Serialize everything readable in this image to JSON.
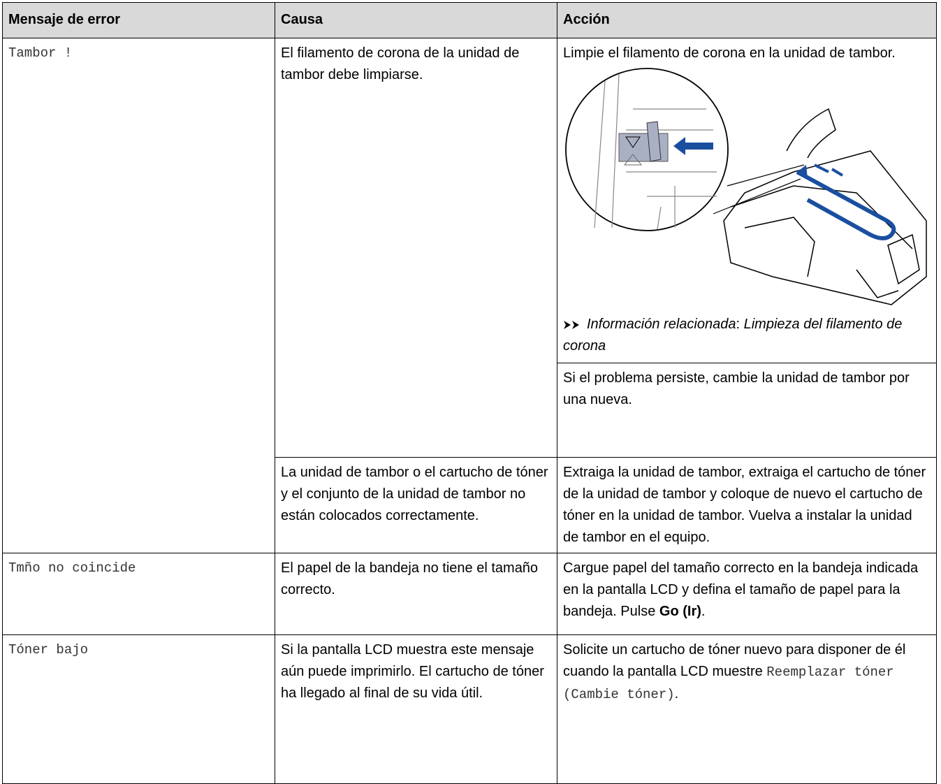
{
  "table": {
    "headers": [
      "Mensaje de error",
      "Causa",
      "Acción"
    ],
    "rows": [
      {
        "error": "Tambor !",
        "causes": [
          {
            "cause": "El filamento de corona de la unidad de tambor debe limpiarse.",
            "action": "Limpie el filamento de corona en la unidad de tambor.",
            "related_label": "Información relacionada",
            "related_separator": ":",
            "related_link": "Limpieza del filamento de corona",
            "action_extra": "Si el problema persiste, cambie la unidad de tambor por una nueva."
          },
          {
            "cause": "La unidad de tambor o el cartucho de tóner y el conjunto de la unidad de tambor no están colocados correctamente.",
            "action": "Extraiga la unidad de tambor, extraiga el cartucho de tóner de la unidad de tambor y coloque de nuevo el cartucho de tóner en la unidad de tambor. Vuelva a instalar la unidad de tambor en el equipo."
          }
        ]
      },
      {
        "error": "Tmño no coincide",
        "causes": [
          {
            "cause": "El papel de la bandeja no tiene el tamaño correcto.",
            "action": "Cargue papel del tamaño correcto en la bandeja indicada en la pantalla LCD y defina el tamaño de papel para la bandeja. Pulse ",
            "action_bold": "Go (Ir)",
            "action_end": "."
          }
        ]
      },
      {
        "error": "Tóner bajo",
        "causes": [
          {
            "cause": "Si la pantalla LCD muestra este mensaje aún puede imprimirlo. El cartucho de tóner ha llegado al final de su vida útil.",
            "action": "Solicite un cartucho de tóner nuevo para disponer de él cuando la pantalla LCD muestre ",
            "action_mono": "Reemplazar tóner (Cambie tóner)",
            "action_end": "."
          }
        ]
      }
    ]
  }
}
